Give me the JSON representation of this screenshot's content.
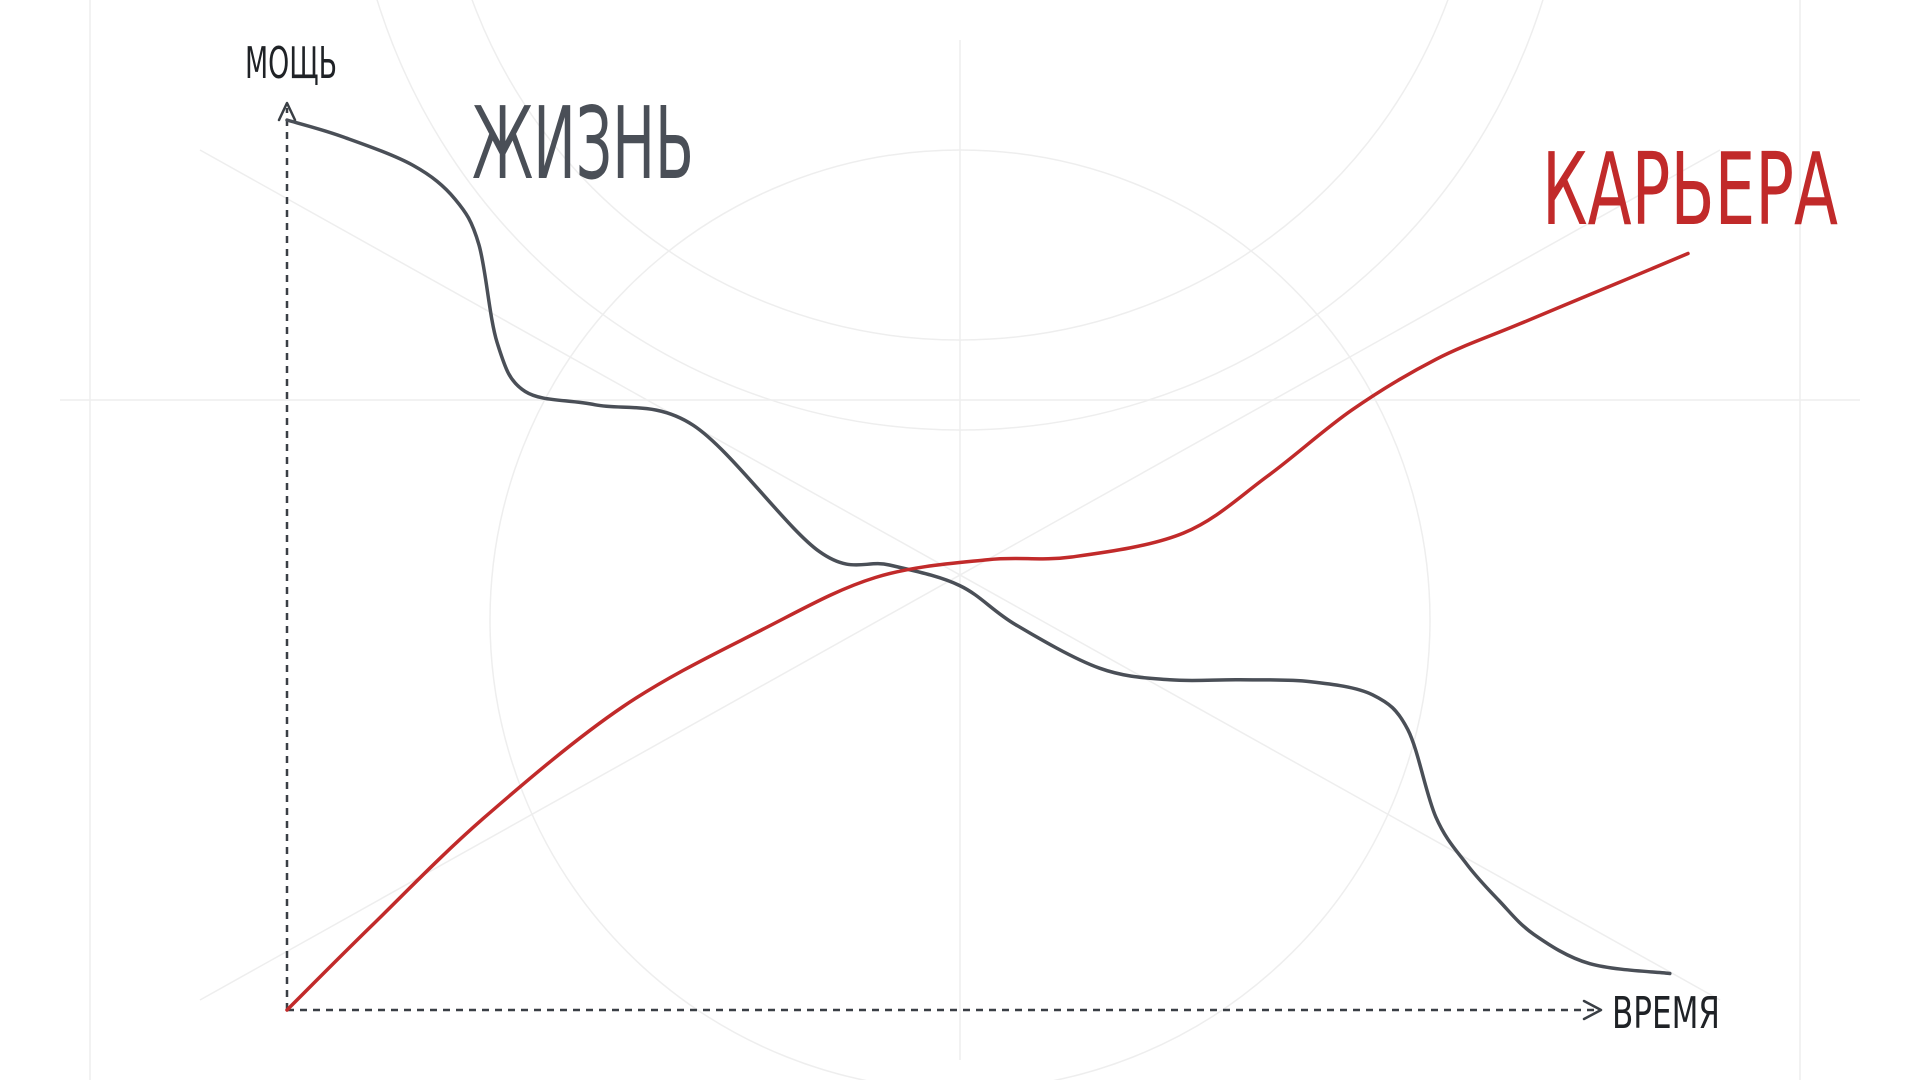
{
  "chart_data": {
    "type": "line",
    "title": "",
    "xlabel": "ВРЕМЯ",
    "ylabel": "МОЩЬ",
    "xlim": [
      0,
      100
    ],
    "ylim": [
      0,
      100
    ],
    "grid": false,
    "legend": "none",
    "series": [
      {
        "name": "ЖИЗНЬ",
        "color": "#4a4f57",
        "x": [
          0,
          4,
          9,
          12,
          13.7,
          15,
          17,
          22,
          29,
          38,
          43,
          48,
          52,
          58,
          63,
          68,
          73,
          77.5,
          80,
          82,
          84.2,
          86.5,
          89,
          93,
          98.7
        ],
        "y": [
          100,
          98.1,
          94.9,
          91.1,
          86,
          75,
          69.5,
          68,
          65.7,
          51.5,
          50,
          47.7,
          43.3,
          38.4,
          37.1,
          37.1,
          36.9,
          35.4,
          31.5,
          21.7,
          16.4,
          12.3,
          8.5,
          5.2,
          4.1
        ],
        "label_position": "top-left"
      },
      {
        "name": "КАРЬЕРА",
        "color": "#c12a2a",
        "x": [
          0,
          6,
          14,
          24,
          34,
          42,
          50,
          56,
          64,
          70,
          76,
          82,
          88,
          95,
          100
        ],
        "y": [
          0,
          9.4,
          21.5,
          34.1,
          42.8,
          48.6,
          50.6,
          50.9,
          53.6,
          60,
          67.4,
          73.1,
          77.1,
          81.7,
          85
        ]
      }
    ]
  }
}
